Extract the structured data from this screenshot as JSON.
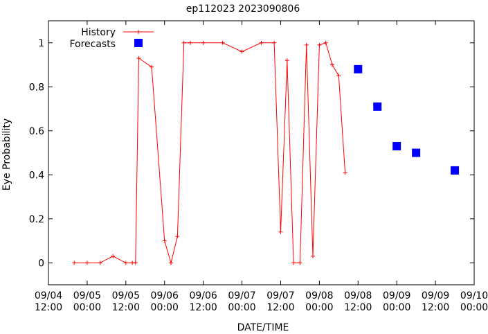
{
  "chart_data": {
    "type": "line",
    "title": "ep112023 2023090806",
    "xlabel": "DATE/TIME",
    "ylabel": "Eye Probability",
    "xlim": [
      "2023-09-04 12:00",
      "2023-09-10 00:00"
    ],
    "ylim": [
      -0.1,
      1.1
    ],
    "y_ticks": [
      0,
      0.2,
      0.4,
      0.6,
      0.8,
      1
    ],
    "y_tick_labels": [
      "0",
      "0.2",
      "0.4",
      "0.6",
      "0.8",
      "1"
    ],
    "x_ticks": [
      "2023-09-04 12:00",
      "2023-09-05 00:00",
      "2023-09-05 12:00",
      "2023-09-06 00:00",
      "2023-09-06 12:00",
      "2023-09-07 00:00",
      "2023-09-07 12:00",
      "2023-09-08 00:00",
      "2023-09-08 12:00",
      "2023-09-09 00:00",
      "2023-09-09 12:00",
      "2023-09-10 00:00"
    ],
    "x_tick_labels": [
      [
        "09/04",
        "12:00"
      ],
      [
        "09/05",
        "00:00"
      ],
      [
        "09/05",
        "12:00"
      ],
      [
        "09/06",
        "00:00"
      ],
      [
        "09/06",
        "12:00"
      ],
      [
        "09/07",
        "00:00"
      ],
      [
        "09/07",
        "12:00"
      ],
      [
        "09/08",
        "00:00"
      ],
      [
        "09/08",
        "12:00"
      ],
      [
        "09/09",
        "00:00"
      ],
      [
        "09/09",
        "12:00"
      ],
      [
        "09/10",
        "00:00"
      ]
    ],
    "grid": false,
    "legend": "top-left",
    "series": [
      {
        "name": "History",
        "style": "line-plus",
        "color": "#ff0000",
        "x": [
          "2023-09-04 20:00",
          "2023-09-05 00:00",
          "2023-09-05 04:00",
          "2023-09-05 08:00",
          "2023-09-05 12:00",
          "2023-09-05 14:00",
          "2023-09-05 15:00",
          "2023-09-05 16:00",
          "2023-09-05 20:00",
          "2023-09-06 00:00",
          "2023-09-06 02:00",
          "2023-09-06 04:00",
          "2023-09-06 06:00",
          "2023-09-06 08:00",
          "2023-09-06 12:00",
          "2023-09-06 18:00",
          "2023-09-07 00:00",
          "2023-09-07 06:00",
          "2023-09-07 10:00",
          "2023-09-07 12:00",
          "2023-09-07 14:00",
          "2023-09-07 16:00",
          "2023-09-07 18:00",
          "2023-09-07 20:00",
          "2023-09-07 22:00",
          "2023-09-08 00:00",
          "2023-09-08 02:00",
          "2023-09-08 04:00",
          "2023-09-08 06:00",
          "2023-09-08 08:00"
        ],
        "y": [
          0.0,
          0.0,
          0.0,
          0.03,
          0.0,
          0.0,
          0.0,
          0.93,
          0.89,
          0.1,
          0.0,
          0.12,
          1.0,
          1.0,
          1.0,
          1.0,
          0.96,
          1.0,
          1.0,
          0.14,
          0.92,
          0.0,
          0.0,
          0.99,
          0.03,
          0.99,
          1.0,
          0.9,
          0.85,
          0.41
        ]
      },
      {
        "name": "Forecasts",
        "style": "square",
        "color": "#0000ff",
        "x": [
          "2023-09-08 12:00",
          "2023-09-08 18:00",
          "2023-09-09 00:00",
          "2023-09-09 06:00",
          "2023-09-09 18:00"
        ],
        "y": [
          0.88,
          0.71,
          0.53,
          0.5,
          0.42
        ]
      }
    ]
  }
}
